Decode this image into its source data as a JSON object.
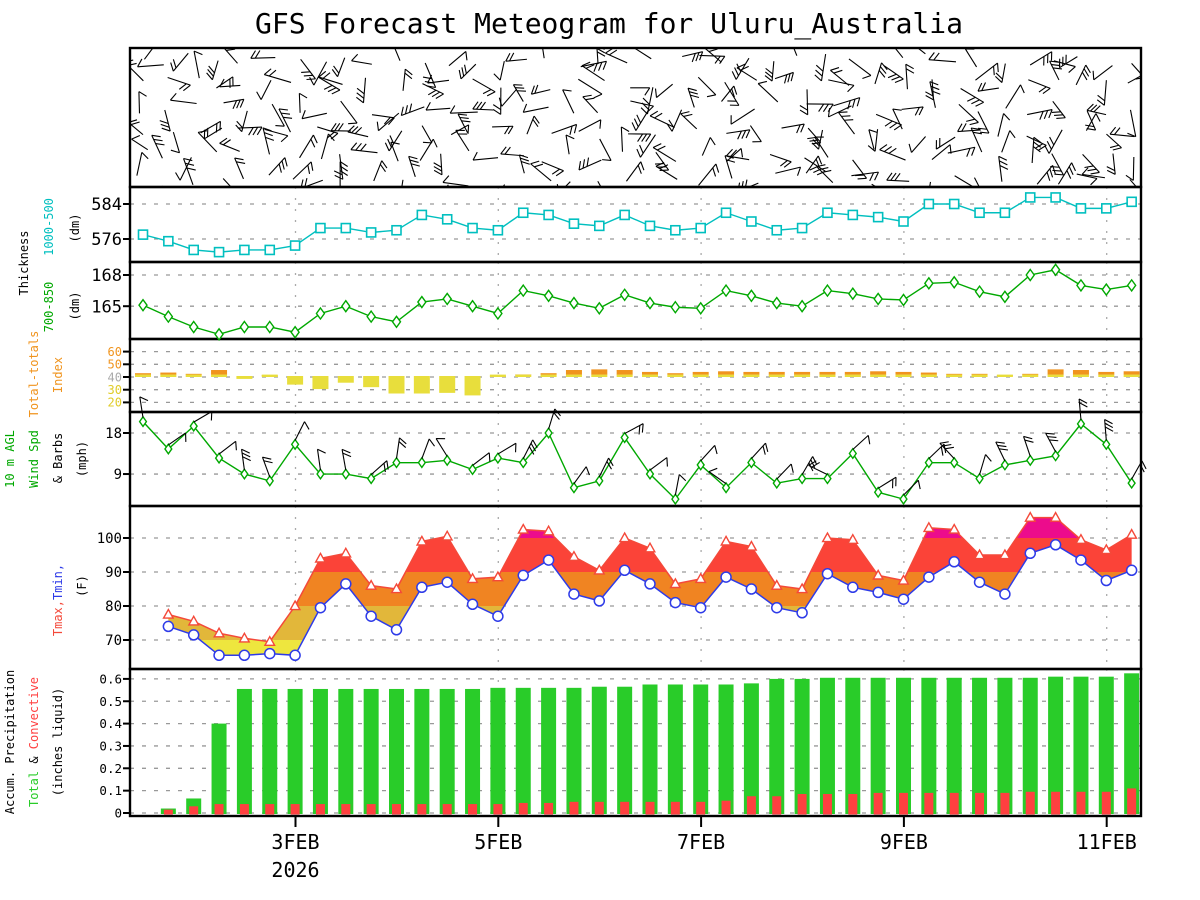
{
  "title": "GFS Forecast Meteogram for Uluru_Australia",
  "x_axis": {
    "tick_labels": [
      "3FEB",
      "5FEB",
      "7FEB",
      "9FEB",
      "11FEB"
    ],
    "year": "2026",
    "n_steps": 40,
    "step_hours": 6
  },
  "chart_data": [
    {
      "name": "upper_air_wind_barbs",
      "type": "wind-barbs",
      "description": "dense multi-level black wind barbs (vertical profile vs time); individual directions not legible"
    },
    {
      "name": "thickness_1000_500",
      "type": "line",
      "ylabel_parts": [
        "Thickness",
        "1000-500",
        "(dm)"
      ],
      "yticks": [
        584,
        576
      ],
      "marker": "square",
      "color": "#00BFBF",
      "values": [
        577,
        575.5,
        573.5,
        573,
        573.5,
        573.5,
        574.5,
        578.5,
        578.5,
        577.5,
        578,
        581.5,
        580.5,
        578.5,
        578,
        582,
        581.5,
        579.5,
        579,
        581.5,
        579,
        578,
        578.5,
        582,
        580,
        578,
        578.5,
        582,
        581.5,
        581,
        580,
        584,
        584,
        582,
        582,
        585.5,
        585.5,
        583,
        583,
        584.5
      ]
    },
    {
      "name": "thickness_700_850",
      "type": "line",
      "ylabel_parts": [
        "700-850",
        "(dm)"
      ],
      "yticks": [
        168,
        165
      ],
      "marker": "diamond",
      "color": "#00A800",
      "values": [
        165.1,
        164,
        163,
        162.3,
        163,
        163,
        162.5,
        164.3,
        165,
        164,
        163.5,
        165.4,
        165.7,
        165,
        164.3,
        166.5,
        166,
        165.3,
        164.8,
        166.1,
        165.3,
        164.9,
        164.8,
        166.5,
        166,
        165.3,
        165,
        166.5,
        166.2,
        165.7,
        165.6,
        167.2,
        167.3,
        166.4,
        165.9,
        168,
        168.5,
        167,
        166.6,
        167
      ]
    },
    {
      "name": "total_totals_index",
      "type": "bar",
      "ylabel_parts": [
        "Total-totals",
        "Index"
      ],
      "yticks": [
        60,
        50,
        40,
        30,
        20
      ],
      "ytick_colors": [
        "#F0941E",
        "#F0941E",
        "#AAAAAA",
        "#E8D families82C",
        "#E8D82C"
      ],
      "baseline": 40,
      "color_above": "#F0941E",
      "color_below": "#E8DE3C",
      "values": [
        43,
        43.5,
        42.5,
        45.5,
        38.5,
        41.5,
        34,
        30.5,
        35.5,
        32,
        27,
        27,
        27.5,
        25.5,
        41,
        42,
        43,
        45.5,
        46,
        45.5,
        44,
        43,
        44,
        44.5,
        44,
        44,
        44,
        44,
        44,
        44.5,
        44,
        43.5,
        42.5,
        42.5,
        41.5,
        42.5,
        46,
        45.5,
        44,
        44.5
      ]
    },
    {
      "name": "wind_speed_10m",
      "type": "line-with-barbs",
      "ylabel_parts": [
        "10 m AGL",
        "Wind Spd",
        "& Barbs",
        "(mph)"
      ],
      "yticks": [
        18,
        9
      ],
      "marker": "diamond",
      "color": "#00A800",
      "values": [
        20.5,
        14.5,
        19.5,
        12.5,
        9,
        7.5,
        15.5,
        9,
        9,
        8,
        11.5,
        11.5,
        12,
        10,
        12.5,
        11.5,
        18,
        6,
        7.5,
        17,
        9,
        3.5,
        11,
        6,
        11.5,
        7,
        8,
        8,
        13.5,
        5,
        3.5,
        11.5,
        11.5,
        8,
        11,
        12,
        13,
        20,
        15.5,
        7
      ]
    },
    {
      "name": "temperature_max_min",
      "type": "band-line",
      "ylabel_parts": [
        "Tmax,",
        "Tmin,",
        "(F)"
      ],
      "yticks": [
        100,
        90,
        80,
        70
      ],
      "band_colors": {
        "below_70": "#EEE63E",
        "70_80": "#E2B73A",
        "80_90": "#F08422",
        "90_100": "#FB4338",
        "above_100": "#EC0C8C"
      },
      "tmax_color": "#F4493A",
      "tmin_color": "#2E3BE8",
      "tmax": [
        null,
        77.5,
        75.5,
        72,
        70.5,
        69.5,
        80,
        94,
        95.5,
        86,
        85,
        99,
        100.5,
        88,
        88.5,
        102.5,
        102,
        94.5,
        90.5,
        100,
        97,
        86.5,
        88,
        99,
        97.5,
        86,
        85,
        100,
        99.5,
        89,
        87.5,
        103,
        102.5,
        95,
        95,
        106,
        106,
        99.5,
        96.5,
        101
      ],
      "tmin": [
        null,
        74,
        71.5,
        65.5,
        65.5,
        66,
        65.5,
        79.5,
        86.5,
        77,
        73,
        85.5,
        87,
        80.5,
        77,
        89,
        93.5,
        83.5,
        81.5,
        90.5,
        86.5,
        81,
        79.5,
        88.5,
        85,
        79.5,
        78,
        89.5,
        85.5,
        84,
        82,
        88.5,
        93,
        87,
        83.5,
        95.5,
        98,
        93.5,
        87.5,
        90.5
      ]
    },
    {
      "name": "accumulated_precipitation",
      "type": "bar",
      "ylabel_parts": [
        "Accum. Precipitation",
        "Total",
        " & ",
        "Convective",
        "(inches liquid)"
      ],
      "yticks": [
        0.6,
        0.5,
        0.4,
        0.3,
        0.2,
        0.1,
        0
      ],
      "total_color": "#29CC29",
      "convective_color": "#FF4040",
      "total": [
        0,
        0.02,
        0.065,
        0.4,
        0.555,
        0.555,
        0.555,
        0.555,
        0.555,
        0.555,
        0.555,
        0.555,
        0.555,
        0.555,
        0.56,
        0.56,
        0.56,
        0.56,
        0.565,
        0.565,
        0.575,
        0.575,
        0.575,
        0.575,
        0.58,
        0.6,
        0.6,
        0.605,
        0.605,
        0.605,
        0.605,
        0.605,
        0.605,
        0.605,
        0.605,
        0.605,
        0.61,
        0.61,
        0.61,
        0.625
      ],
      "convective": [
        0,
        0.015,
        0.03,
        0.04,
        0.04,
        0.04,
        0.04,
        0.04,
        0.04,
        0.04,
        0.04,
        0.04,
        0.04,
        0.04,
        0.04,
        0.045,
        0.045,
        0.05,
        0.05,
        0.05,
        0.05,
        0.05,
        0.05,
        0.055,
        0.075,
        0.075,
        0.085,
        0.085,
        0.085,
        0.09,
        0.09,
        0.09,
        0.09,
        0.09,
        0.09,
        0.095,
        0.095,
        0.095,
        0.095,
        0.11
      ]
    }
  ]
}
